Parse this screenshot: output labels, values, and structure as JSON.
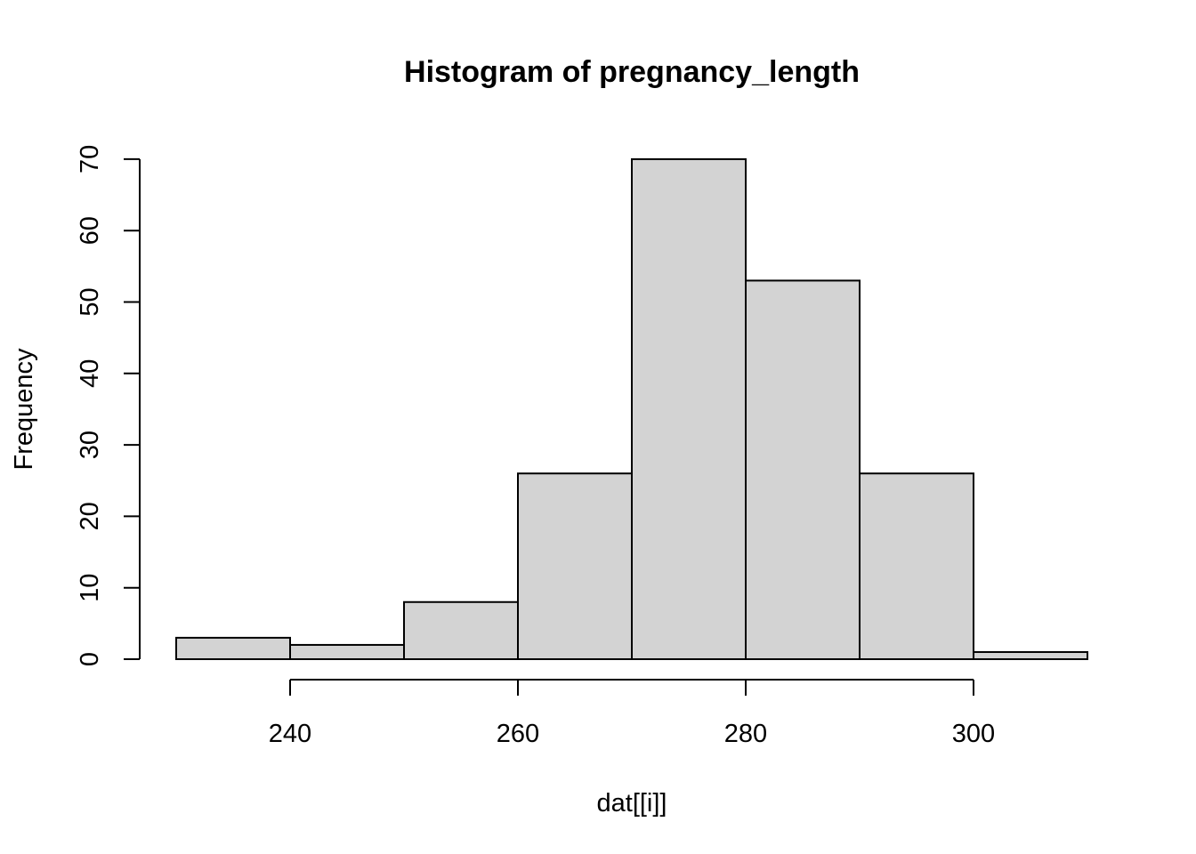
{
  "chart_data": {
    "type": "bar",
    "title": "Histogram of pregnancy_length",
    "xlabel": "dat[[i]]",
    "ylabel": "Frequency",
    "bins": [
      {
        "start": 230,
        "end": 240,
        "count": 3
      },
      {
        "start": 240,
        "end": 250,
        "count": 2
      },
      {
        "start": 250,
        "end": 260,
        "count": 8
      },
      {
        "start": 260,
        "end": 270,
        "count": 26
      },
      {
        "start": 270,
        "end": 280,
        "count": 70
      },
      {
        "start": 280,
        "end": 290,
        "count": 53
      },
      {
        "start": 290,
        "end": 300,
        "count": 26
      },
      {
        "start": 300,
        "end": 310,
        "count": 1
      }
    ],
    "xticks": [
      240,
      260,
      280,
      300
    ],
    "yticks": [
      0,
      10,
      20,
      30,
      40,
      50,
      60,
      70
    ],
    "xlim": [
      230,
      310
    ],
    "ylim": [
      0,
      70
    ],
    "grid": false,
    "legend": "none",
    "bar_fill": "#d3d3d3",
    "bar_stroke": "#000000"
  }
}
